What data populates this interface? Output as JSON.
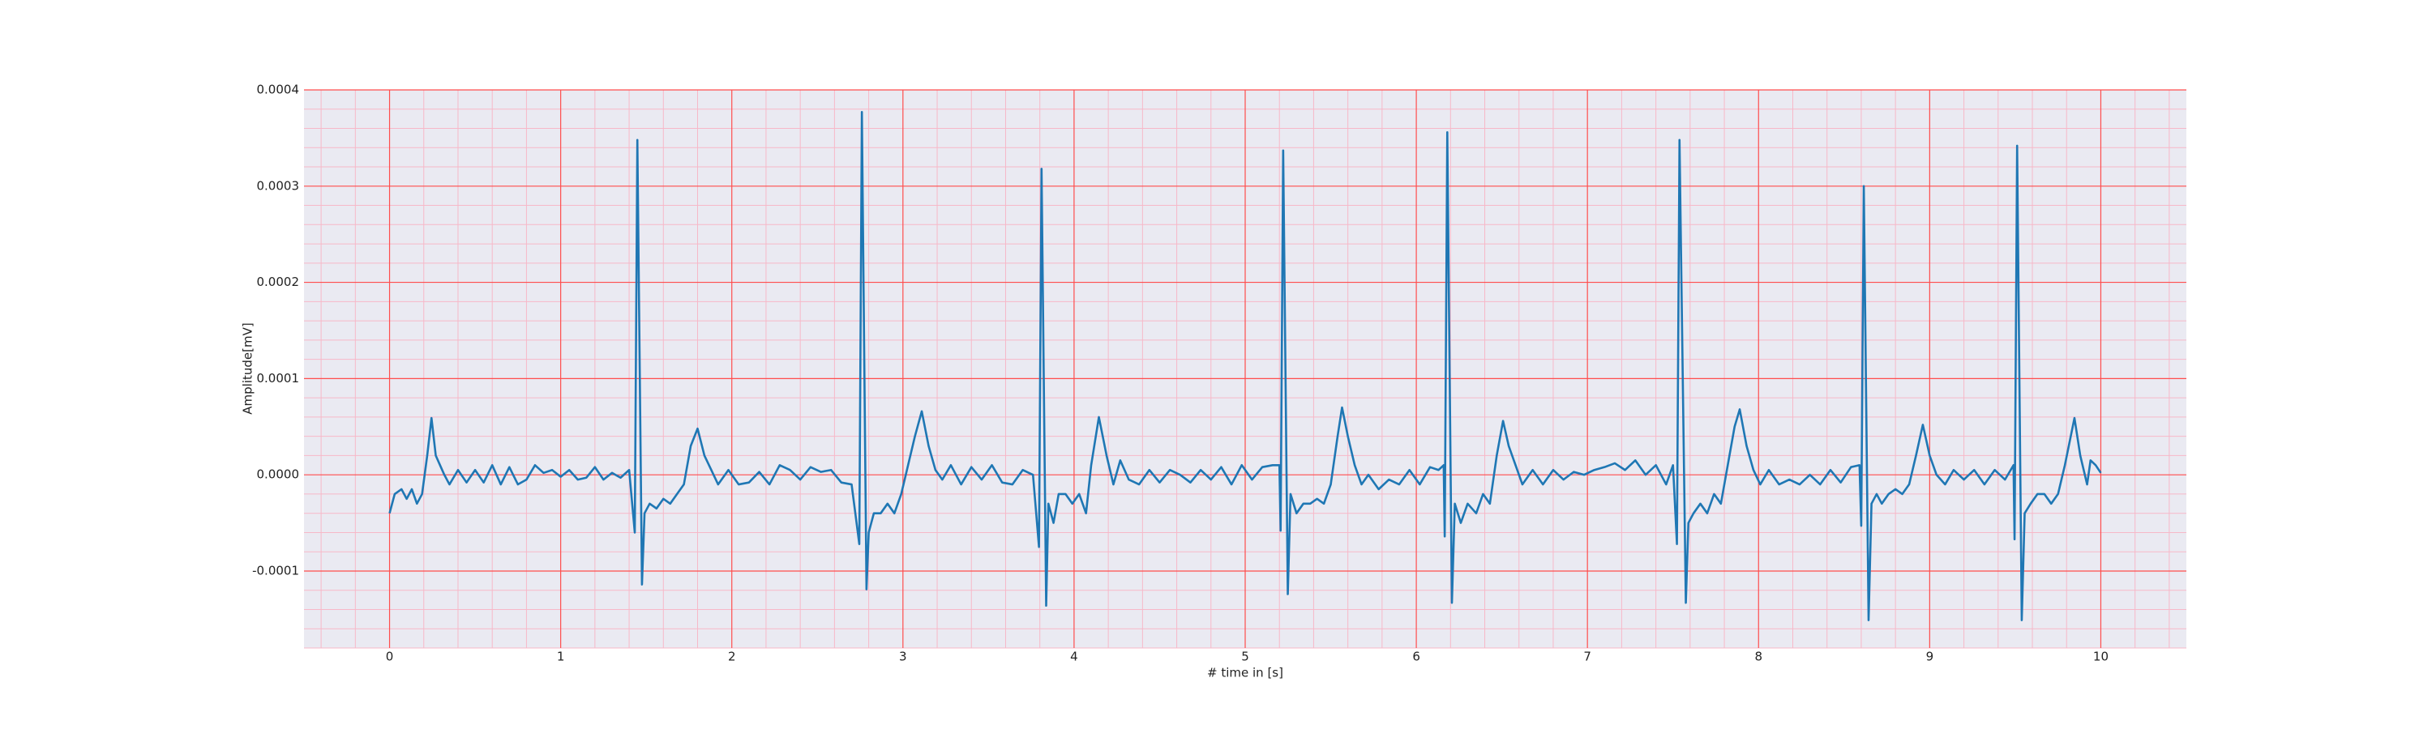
{
  "chart_data": {
    "type": "line",
    "xlabel": "# time in [s]",
    "ylabel": "Amplitude[mV]",
    "color": "#1f77b4",
    "grid": true,
    "grid_color": "#ff4d4d",
    "minor_grid_color": "#f7b8c8",
    "minor_divisions": 5,
    "background": "#eaeaf2",
    "xlim": [
      -0.5,
      10.5
    ],
    "xticks": [
      0,
      1,
      2,
      3,
      4,
      5,
      6,
      7,
      8,
      9,
      10
    ],
    "ylim": [
      -0.00018,
      0.0004
    ],
    "yticks": [
      -0.0001,
      {
        "value": 0,
        "label": "0.0000"
      },
      0.0001,
      0.0002,
      0.0003,
      0.0004
    ],
    "x": [
      0,
      0.03,
      0.07,
      0.1,
      0.13,
      0.16,
      0.19,
      0.22,
      0.245,
      0.27,
      0.29,
      0.32,
      0.35,
      0.4,
      0.45,
      0.5,
      0.55,
      0.6,
      0.65,
      0.7,
      0.75,
      0.8,
      0.85,
      0.9,
      0.95,
      1.0,
      1.05,
      1.1,
      1.15,
      1.2,
      1.25,
      1.3,
      1.35,
      1.4,
      1.433,
      1.448,
      1.475,
      1.49,
      1.52,
      1.56,
      1.6,
      1.64,
      1.68,
      1.72,
      1.76,
      1.8,
      1.84,
      1.88,
      1.92,
      1.98,
      2.04,
      2.1,
      2.16,
      2.22,
      2.28,
      2.34,
      2.4,
      2.46,
      2.52,
      2.58,
      2.64,
      2.7,
      2.745,
      2.76,
      2.787,
      2.8,
      2.83,
      2.87,
      2.91,
      2.95,
      2.99,
      3.03,
      3.07,
      3.11,
      3.15,
      3.19,
      3.23,
      3.28,
      3.34,
      3.4,
      3.46,
      3.52,
      3.58,
      3.64,
      3.7,
      3.76,
      3.795,
      3.81,
      3.837,
      3.85,
      3.88,
      3.91,
      3.95,
      3.99,
      4.03,
      4.07,
      4.1,
      4.145,
      4.19,
      4.23,
      4.27,
      4.32,
      4.38,
      4.44,
      4.5,
      4.56,
      4.62,
      4.68,
      4.74,
      4.8,
      4.86,
      4.92,
      4.98,
      5.04,
      5.1,
      5.16,
      5.2,
      5.207,
      5.222,
      5.249,
      5.265,
      5.3,
      5.34,
      5.38,
      5.42,
      5.46,
      5.5,
      5.54,
      5.566,
      5.6,
      5.64,
      5.68,
      5.72,
      5.78,
      5.84,
      5.9,
      5.96,
      6.02,
      6.08,
      6.13,
      6.16,
      6.166,
      6.181,
      6.208,
      6.225,
      6.26,
      6.3,
      6.35,
      6.39,
      6.43,
      6.47,
      6.507,
      6.54,
      6.58,
      6.62,
      6.68,
      6.74,
      6.8,
      6.86,
      6.92,
      6.98,
      7.04,
      7.1,
      7.16,
      7.22,
      7.28,
      7.34,
      7.4,
      7.46,
      7.5,
      7.523,
      7.538,
      7.575,
      7.59,
      7.62,
      7.66,
      7.7,
      7.74,
      7.78,
      7.82,
      7.86,
      7.89,
      7.93,
      7.97,
      8.01,
      8.06,
      8.12,
      8.18,
      8.24,
      8.3,
      8.36,
      8.42,
      8.48,
      8.54,
      8.59,
      8.6,
      8.615,
      8.643,
      8.66,
      8.69,
      8.72,
      8.76,
      8.8,
      8.84,
      8.88,
      8.92,
      8.96,
      9.0,
      9.04,
      9.09,
      9.14,
      9.2,
      9.26,
      9.32,
      9.38,
      9.44,
      9.49,
      9.496,
      9.511,
      9.538,
      9.555,
      9.59,
      9.63,
      9.67,
      9.71,
      9.75,
      9.79,
      9.846,
      9.88,
      9.92,
      9.94,
      9.97,
      10.0
    ],
    "values": [
      -4e-05,
      -2e-05,
      -1.5e-05,
      -2.5e-05,
      -1.5e-05,
      -3e-05,
      -2e-05,
      2e-05,
      5.9e-05,
      2e-05,
      1.2e-05,
      0.0,
      -1e-05,
      5e-06,
      -8e-06,
      5e-06,
      -8e-06,
      1e-05,
      -1e-05,
      8e-06,
      -1e-05,
      -5e-06,
      1e-05,
      2e-06,
      5e-06,
      -2e-06,
      5e-06,
      -5e-06,
      -3e-06,
      8e-06,
      -5e-06,
      2e-06,
      -3e-06,
      5e-06,
      -6e-05,
      0.000348,
      -0.000114,
      -4e-05,
      -3e-05,
      -3.5e-05,
      -2.5e-05,
      -3e-05,
      -2e-05,
      -1e-05,
      3e-05,
      4.8e-05,
      2e-05,
      5e-06,
      -1e-05,
      5e-06,
      -1e-05,
      -8e-06,
      3e-06,
      -1e-05,
      1e-05,
      5e-06,
      -5e-06,
      8e-06,
      3e-06,
      5e-06,
      -8e-06,
      -1e-05,
      -7.2e-05,
      0.000377,
      -0.000119,
      -6e-05,
      -4e-05,
      -4e-05,
      -3e-05,
      -4e-05,
      -2e-05,
      1e-05,
      4e-05,
      6.6e-05,
      3e-05,
      5e-06,
      -5e-06,
      1e-05,
      -1e-05,
      8e-06,
      -5e-06,
      1e-05,
      -8e-06,
      -1e-05,
      5e-06,
      0.0,
      -7.5e-05,
      0.000318,
      -0.000136,
      -3e-05,
      -5e-05,
      -2e-05,
      -2e-05,
      -3e-05,
      -2e-05,
      -4e-05,
      1e-05,
      6e-05,
      2e-05,
      -1e-05,
      1.5e-05,
      -5e-06,
      -1e-05,
      5e-06,
      -8e-06,
      5e-06,
      0.0,
      -8e-06,
      5e-06,
      -5e-06,
      8e-06,
      -1e-05,
      1e-05,
      -5e-06,
      8e-06,
      1e-05,
      1e-05,
      -5.8e-05,
      0.000337,
      -0.000124,
      -2e-05,
      -4e-05,
      -3e-05,
      -3e-05,
      -2.5e-05,
      -3e-05,
      -1e-05,
      4e-05,
      7e-05,
      4e-05,
      1e-05,
      -1e-05,
      0.0,
      -1.5e-05,
      -5e-06,
      -1e-05,
      5e-06,
      -1e-05,
      8e-06,
      5e-06,
      1e-05,
      -6.4e-05,
      0.000356,
      -0.000133,
      -3e-05,
      -5e-05,
      -3e-05,
      -4e-05,
      -2e-05,
      -3e-05,
      2e-05,
      5.6e-05,
      3e-05,
      1e-05,
      -1e-05,
      5e-06,
      -1e-05,
      5e-06,
      -5e-06,
      3e-06,
      0.0,
      5e-06,
      8e-06,
      1.2e-05,
      5e-06,
      1.5e-05,
      0.0,
      1e-05,
      -1e-05,
      1e-05,
      -7.2e-05,
      0.000348,
      -0.000133,
      -5e-05,
      -4e-05,
      -3e-05,
      -4e-05,
      -2e-05,
      -3e-05,
      1e-05,
      5e-05,
      6.8e-05,
      3e-05,
      5e-06,
      -1e-05,
      5e-06,
      -1e-05,
      -5e-06,
      -1e-05,
      0.0,
      -1e-05,
      5e-06,
      -8e-06,
      8e-06,
      1e-05,
      -5.3e-05,
      0.0003,
      -0.000151,
      -3e-05,
      -2e-05,
      -3e-05,
      -2e-05,
      -1.5e-05,
      -2e-05,
      -1e-05,
      2e-05,
      5.2e-05,
      2e-05,
      0.0,
      -1e-05,
      5e-06,
      -5e-06,
      5e-06,
      -1e-05,
      5e-06,
      -5e-06,
      1e-05,
      -6.7e-05,
      0.000342,
      -0.000151,
      -4e-05,
      -3e-05,
      -2e-05,
      -2e-05,
      -3e-05,
      -2e-05,
      1e-05,
      5.9e-05,
      2e-05,
      -1e-05,
      1.5e-05,
      1e-05,
      2e-06
    ]
  }
}
